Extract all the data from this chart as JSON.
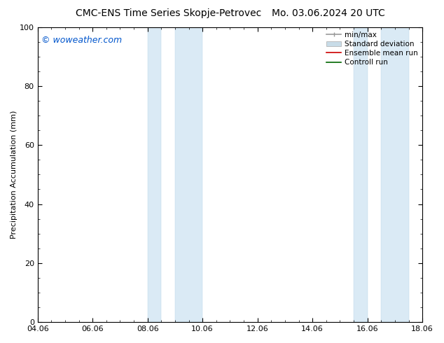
{
  "title_left": "CMC-ENS Time Series Skopje-Petrovec",
  "title_right": "Mo. 03.06.2024 20 UTC",
  "ylabel": "Precipitation Accumulation (mm)",
  "watermark": "© woweather.com",
  "watermark_color": "#0055cc",
  "xtick_labels": [
    "04.06",
    "06.06",
    "08.06",
    "10.06",
    "12.06",
    "14.06",
    "16.06",
    "18.06"
  ],
  "xtick_positions": [
    0,
    2,
    4,
    6,
    8,
    10,
    12,
    14
  ],
  "xlim": [
    0,
    14
  ],
  "ylim": [
    0,
    100
  ],
  "ytick_labels": [
    0,
    20,
    40,
    60,
    80,
    100
  ],
  "blue_bands": [
    {
      "x_start": 4.0,
      "x_end": 4.67
    },
    {
      "x_start": 5.33,
      "x_end": 6.0
    },
    {
      "x_start": 11.33,
      "x_end": 12.0
    },
    {
      "x_start": 12.67,
      "x_end": 13.33
    }
  ],
  "band_color": "#daeaf5",
  "band_edge_color": "#b8d4e8",
  "legend_entries": [
    {
      "label": "min/max",
      "color": "#999999",
      "lw": 1.2
    },
    {
      "label": "Standard deviation",
      "color": "#c8dce8",
      "lw": 5
    },
    {
      "label": "Ensemble mean run",
      "color": "#cc0000",
      "lw": 1.2
    },
    {
      "label": "Controll run",
      "color": "#006600",
      "lw": 1.2
    }
  ],
  "title_fontsize": 10,
  "axis_label_fontsize": 8,
  "tick_fontsize": 8,
  "legend_fontsize": 7.5,
  "watermark_fontsize": 9,
  "background_color": "#ffffff"
}
